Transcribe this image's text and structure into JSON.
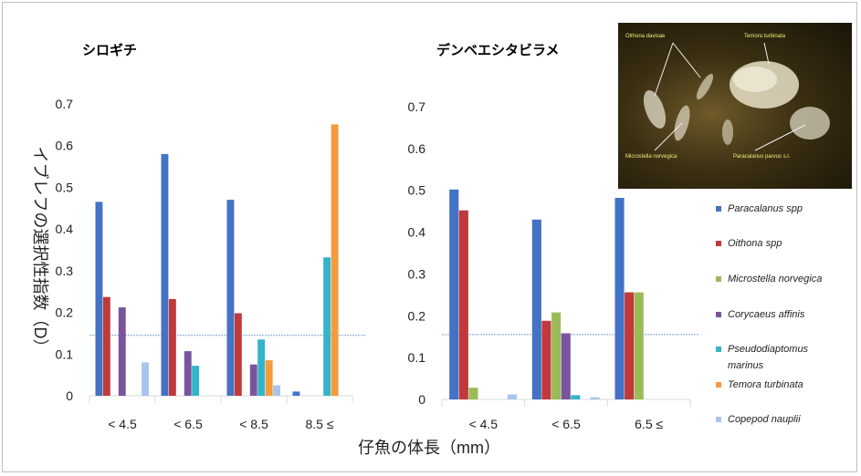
{
  "colors": {
    "Paracalanus spp": "#4472C4",
    "Oithona spp": "#C0393B",
    "Microstella norvegica": "#9BBB59",
    "Corycaeus affinis": "#7A559E",
    "Pseudodiaptomus marinus": "#33B5C9",
    "Temora turbinata": "#F59B3D",
    "Copepod nauplii": "#A9C4EB"
  },
  "y_axis_label": "イブレフの選択性指数（D）",
  "x_axis_label": "仔魚の体長（mm）",
  "legend": [
    {
      "name": "Paracalanus spp"
    },
    {
      "name": "Oithona spp"
    },
    {
      "name": "Microstella norvegica"
    },
    {
      "name": "Corycaeus affinis"
    },
    {
      "name": "Pseudodiaptomus marinus",
      "lines": [
        "Pseudodiaptomus",
        "marinus"
      ]
    },
    {
      "name": "Temora turbinata"
    },
    {
      "name": "Copepod nauplii"
    }
  ],
  "photo": {
    "labels": [
      "Oithona davisae",
      "Temora turbinata",
      "Microstella norvegica",
      "Paracalanus parvus s.l."
    ]
  },
  "chart_data": [
    {
      "type": "bar",
      "title": "シロギチ",
      "categories": [
        "< 4.5",
        "< 6.5",
        "< 8.5",
        "8.5 ≤"
      ],
      "ylim": [
        0,
        0.7
      ],
      "yticks": [
        "0",
        "0.1",
        "0.2",
        "0.3",
        "0.4",
        "0.5",
        "0.6",
        "0.7"
      ],
      "reference_line": 0.145,
      "series": [
        {
          "name": "Paracalanus spp",
          "values": [
            0.465,
            0.58,
            0.47,
            0.01
          ]
        },
        {
          "name": "Oithona spp",
          "values": [
            0.237,
            0.232,
            0.198,
            0
          ]
        },
        {
          "name": "Microstella norvegica",
          "values": [
            0,
            0,
            0,
            0
          ]
        },
        {
          "name": "Corycaeus affinis",
          "values": [
            0.212,
            0.107,
            0.075,
            0
          ]
        },
        {
          "name": "Pseudodiaptomus marinus",
          "values": [
            0,
            0.072,
            0.135,
            0.332
          ]
        },
        {
          "name": "Temora turbinata",
          "values": [
            0,
            0,
            0.085,
            0.651
          ]
        },
        {
          "name": "Copepod nauplii",
          "values": [
            0.08,
            0,
            0.025,
            0
          ]
        }
      ]
    },
    {
      "type": "bar",
      "title": "デンベエシタビラメ",
      "categories": [
        "< 4.5",
        "< 6.5",
        "6.5 ≤"
      ],
      "ylim": [
        0,
        0.7
      ],
      "yticks": [
        "0",
        "0.1",
        "0.2",
        "0.3",
        "0.4",
        "0.5",
        "0.6",
        "0.7"
      ],
      "reference_line": 0.155,
      "series": [
        {
          "name": "Paracalanus spp",
          "values": [
            0.502,
            0.43,
            0.482
          ]
        },
        {
          "name": "Oithona spp",
          "values": [
            0.452,
            0.188,
            0.256
          ]
        },
        {
          "name": "Microstella norvegica",
          "values": [
            0.028,
            0.208,
            0.256
          ]
        },
        {
          "name": "Corycaeus affinis",
          "values": [
            0,
            0.158,
            0
          ]
        },
        {
          "name": "Pseudodiaptomus marinus",
          "values": [
            0,
            0.01,
            0
          ]
        },
        {
          "name": "Temora turbinata",
          "values": [
            0,
            0,
            0
          ]
        },
        {
          "name": "Copepod nauplii",
          "values": [
            0.012,
            0.005,
            0
          ]
        }
      ]
    }
  ]
}
